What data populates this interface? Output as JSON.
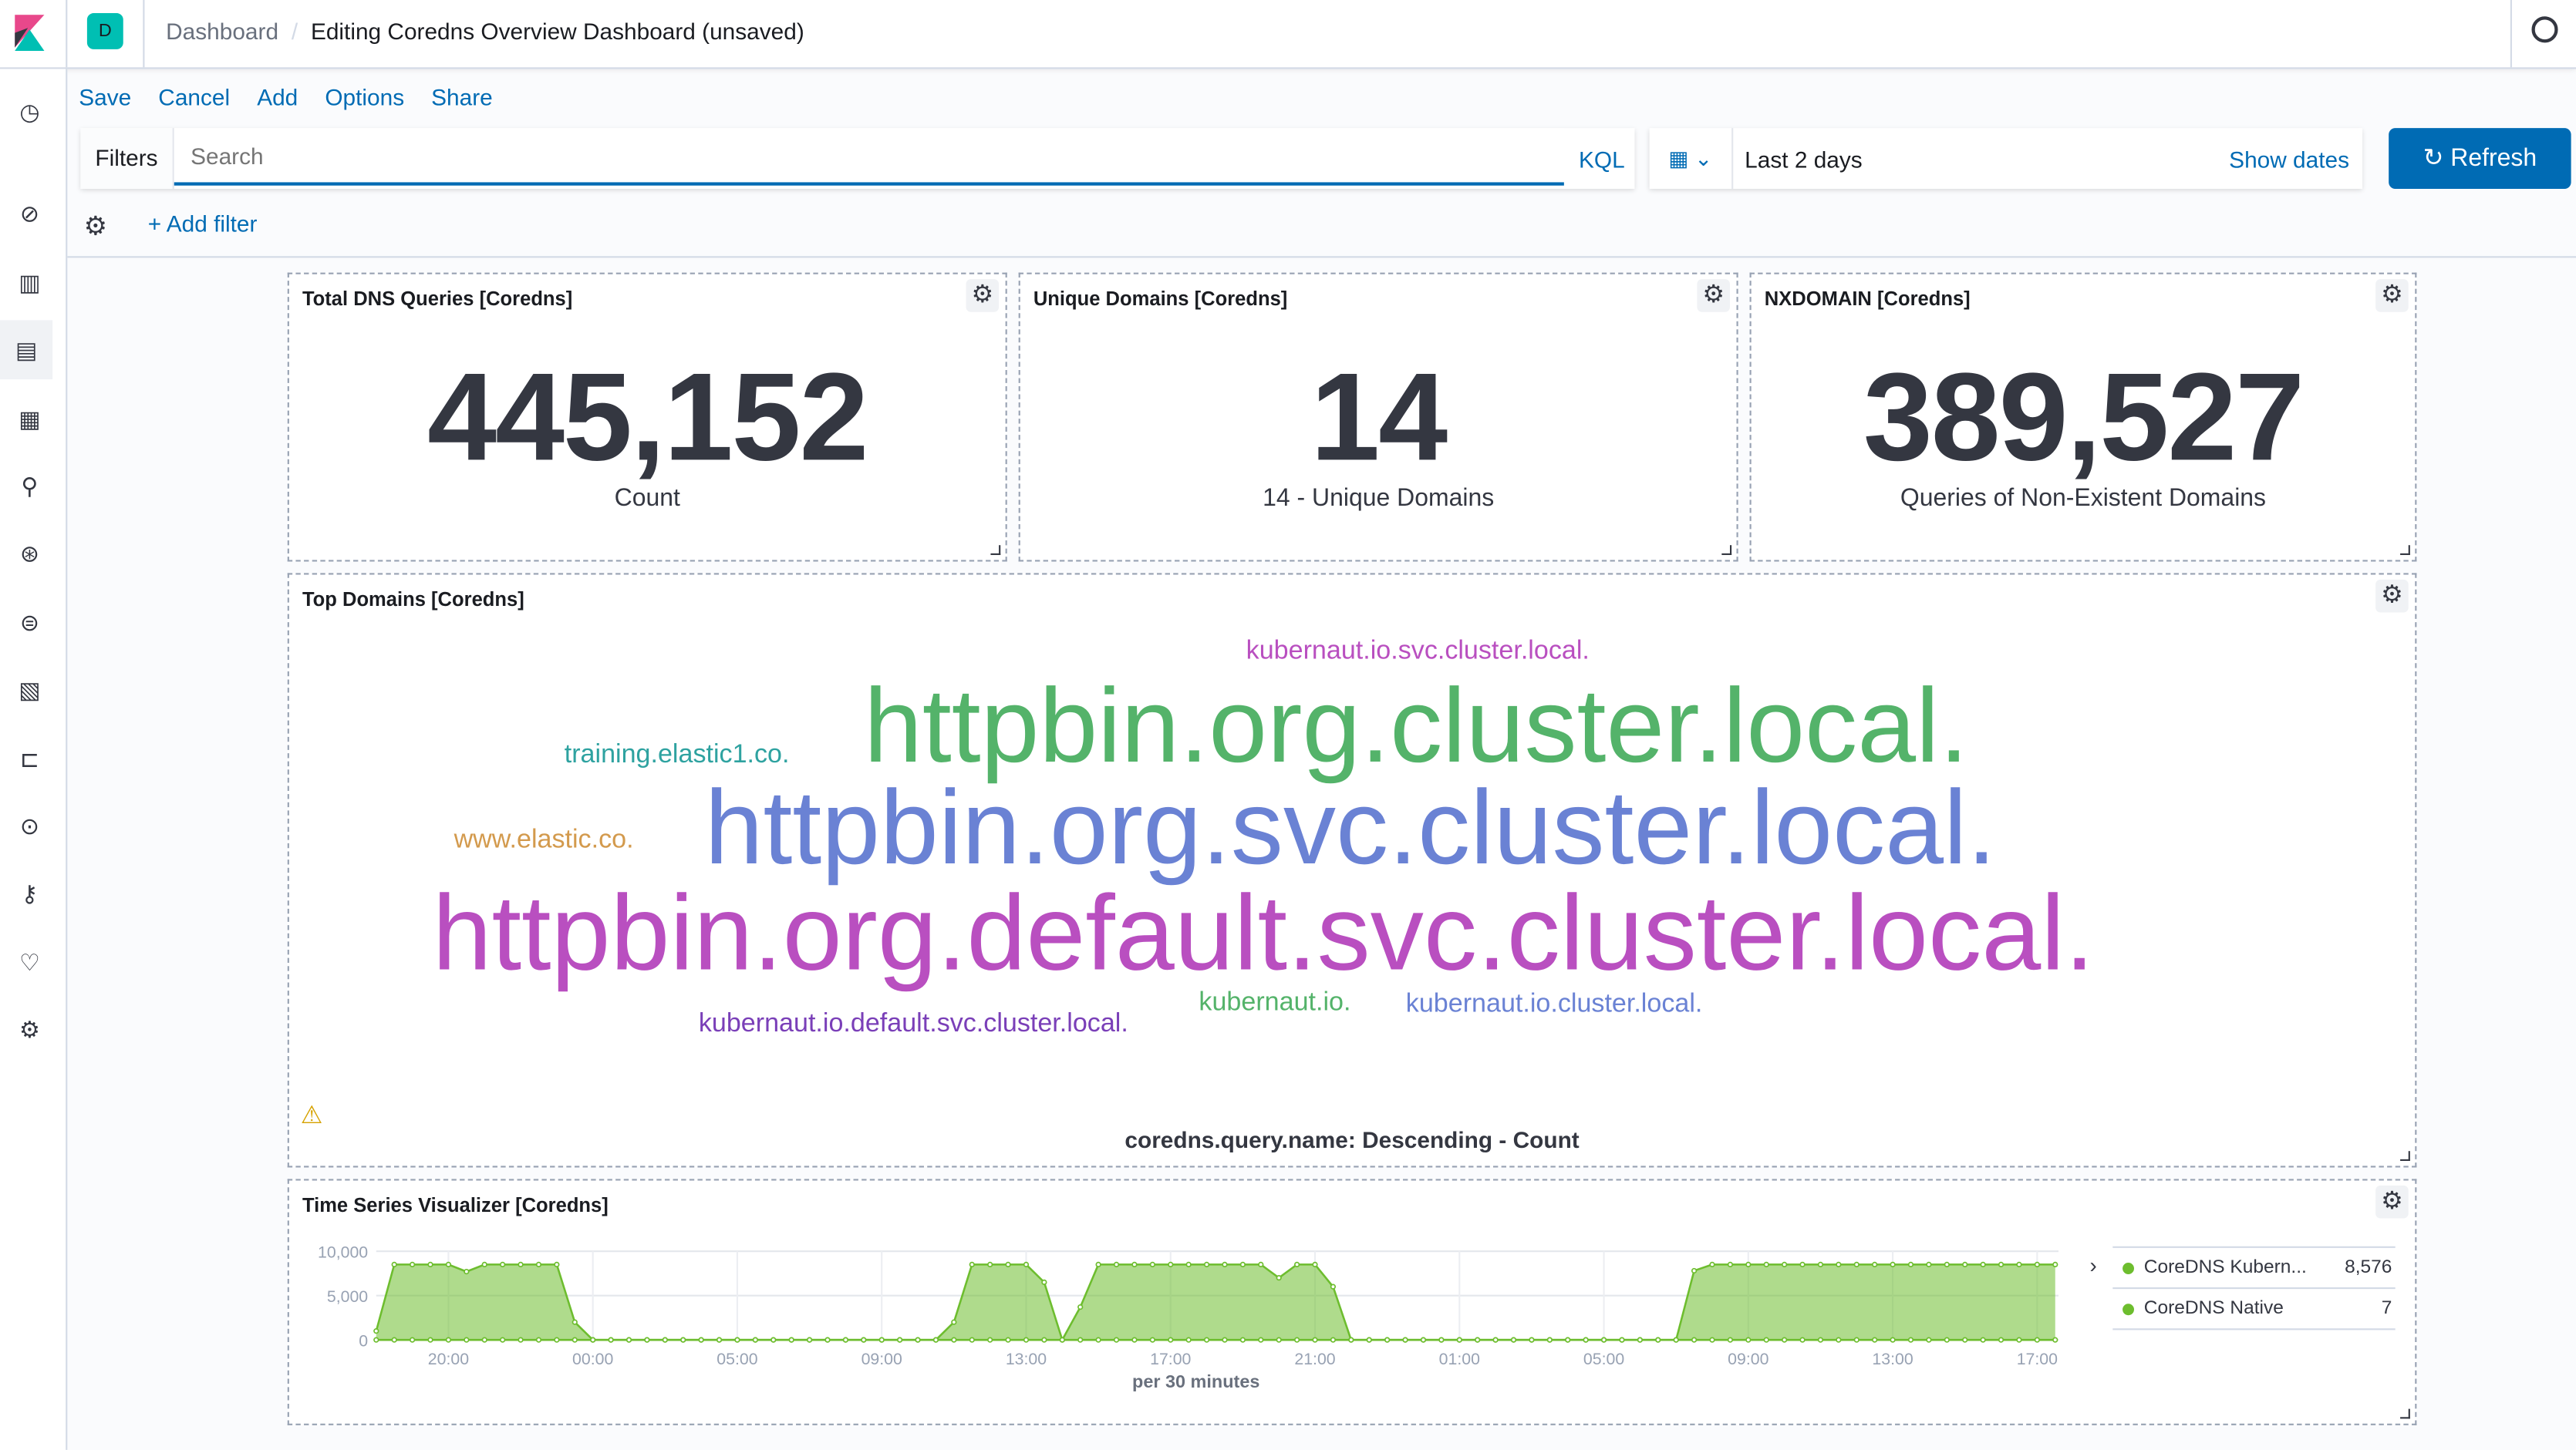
{
  "header": {
    "space_initial": "D",
    "space_color": "#00bfb3",
    "breadcrumbs": [
      "Dashboard",
      "Editing Coredns Overview Dashboard (unsaved)"
    ]
  },
  "sidebar": {
    "items": [
      "recently-viewed",
      "discover",
      "visualize",
      "dashboard",
      "canvas",
      "maps",
      "machine-learning",
      "infrastructure",
      "logs",
      "apm",
      "uptime",
      "dev-tools",
      "monitoring",
      "management"
    ]
  },
  "toolbar": {
    "save": "Save",
    "cancel": "Cancel",
    "add": "Add",
    "options": "Options",
    "share": "Share"
  },
  "query": {
    "filters_label": "Filters",
    "placeholder": "Search",
    "language": "KQL",
    "time_range": "Last 2 days",
    "show_dates": "Show dates",
    "refresh": "Refresh",
    "add_filter": "+ Add filter"
  },
  "panels": {
    "total": {
      "title": "Total DNS Queries [Coredns]",
      "value": "445,152",
      "label": "Count"
    },
    "unique": {
      "title": "Unique Domains [Coredns]",
      "value": "14",
      "label": "14 - Unique Domains"
    },
    "nxdomain": {
      "title": "NXDOMAIN [Coredns]",
      "value": "389,527",
      "label": "Queries of Non-Existent Domains"
    },
    "top_domains": {
      "title": "Top Domains [Coredns]",
      "caption": "coredns.query.name: Descending - Count",
      "words": [
        {
          "text": "kubernaut.io.svc.cluster.local.",
          "color": "#b94fc0"
        },
        {
          "text": "httpbin.org.cluster.local.",
          "color": "#54b36a"
        },
        {
          "text": "training.elastic1.co.",
          "color": "#2ea2a0"
        },
        {
          "text": "httpbin.org.svc.cluster.local.",
          "color": "#6a82d4"
        },
        {
          "text": "www.elastic.co.",
          "color": "#d39a4d"
        },
        {
          "text": "httpbin.org.default.svc.cluster.local.",
          "color": "#b94fc0"
        },
        {
          "text": "kubernaut.io.",
          "color": "#54b36a"
        },
        {
          "text": "kubernaut.io.cluster.local.",
          "color": "#6a82d4"
        },
        {
          "text": "kubernaut.io.default.svc.cluster.local.",
          "color": "#7a3fb8"
        }
      ]
    },
    "timeseries": {
      "title": "Time Series Visualizer [Coredns]"
    }
  },
  "chart_data": {
    "type": "area",
    "xlabel": "per 30 minutes",
    "ylabel": "",
    "ylim": [
      0,
      10000
    ],
    "yticks": [
      "10,000",
      "5,000",
      "0"
    ],
    "xticks": [
      "20:00",
      "00:00",
      "05:00",
      "09:00",
      "13:00",
      "17:00",
      "21:00",
      "01:00",
      "05:00",
      "09:00",
      "13:00",
      "17:00"
    ],
    "grid": true,
    "legend_position": "right",
    "color": "#6dbd2e",
    "series": [
      {
        "name": "CoreDNS Kubern...",
        "legend_value": "8,576",
        "values": [
          1000,
          8500,
          8500,
          8500,
          8500,
          7700,
          8500,
          8500,
          8500,
          8500,
          8500,
          2000,
          0,
          0,
          0,
          0,
          0,
          0,
          0,
          0,
          0,
          0,
          0,
          0,
          0,
          0,
          0,
          0,
          0,
          0,
          0,
          0,
          2000,
          8500,
          8500,
          8500,
          8500,
          6500,
          0,
          3700,
          8500,
          8500,
          8500,
          8500,
          8500,
          8500,
          8500,
          8500,
          8500,
          8500,
          7000,
          8500,
          8500,
          6000,
          0,
          0,
          0,
          0,
          0,
          0,
          0,
          0,
          0,
          0,
          0,
          0,
          0,
          0,
          0,
          0,
          0,
          0,
          0,
          7800,
          8500,
          8500,
          8500,
          8500,
          8500,
          8500,
          8500,
          8500,
          8500,
          8500,
          8500,
          8500,
          8500,
          8500,
          8500,
          8500,
          8500,
          8500,
          8500,
          8500
        ]
      },
      {
        "name": "CoreDNS Native",
        "legend_value": "7"
      }
    ]
  }
}
